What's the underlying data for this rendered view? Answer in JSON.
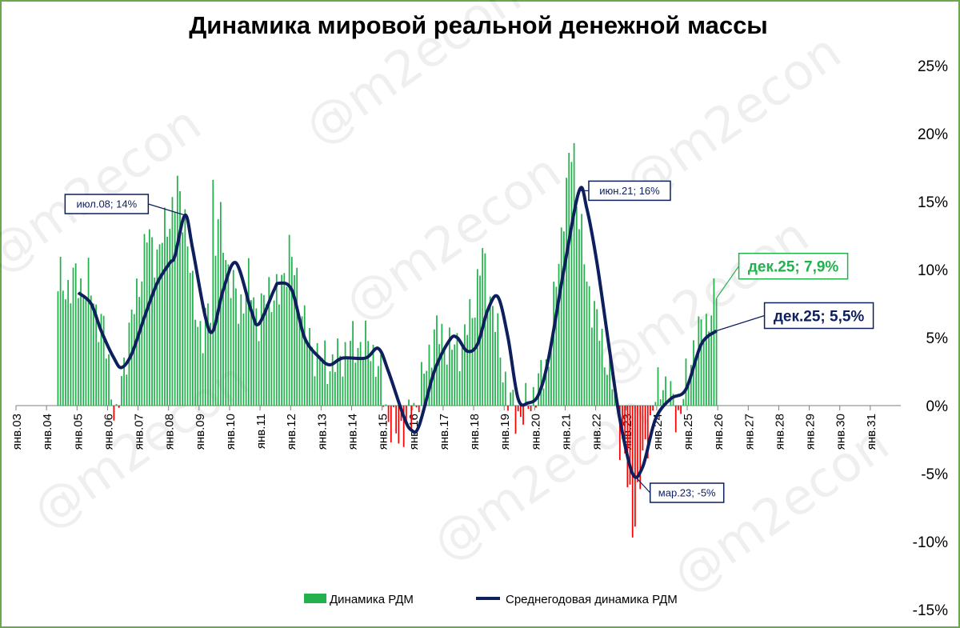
{
  "chart_data": {
    "type": "bar",
    "title": "Динамика мировой реальной денежной массы",
    "watermark": "@m2econ",
    "y_axis": {
      "min": -15,
      "max": 25,
      "step": 5,
      "ticks": [
        "-15%",
        "-10%",
        "-5%",
        "0%",
        "5%",
        "10%",
        "15%",
        "20%",
        "25%"
      ],
      "position": "right"
    },
    "x_axis": {
      "tick_labels": [
        "янв.03",
        "янв.04",
        "янв.05",
        "янв.06",
        "янв.07",
        "янв.08",
        "янв.09",
        "янв.10",
        "янв.11",
        "янв.12",
        "янв.13",
        "янв.14",
        "янв.15",
        "янв.16",
        "янв.17",
        "янв.18",
        "янв.19",
        "янв.20",
        "янв.21",
        "янв.22",
        "янв.23",
        "янв.24",
        "янв.25",
        "янв.26",
        "янв.27",
        "янв.28",
        "янв.29",
        "янв.30",
        "янв.31"
      ],
      "start_year": 2003,
      "end_year": 2032
    },
    "legend_position": "bottom",
    "colors": {
      "positive": "#22b14c",
      "negative": "#ff0000",
      "line": "#0d1f5c",
      "highlight": "#22b14c"
    },
    "series": [
      {
        "name": "Динамика РДМ",
        "type": "bar",
        "start": "2004-05",
        "anchors": [
          [
            "2004-05",
            9.2
          ],
          [
            "2004-08",
            8.5
          ],
          [
            "2004-11",
            9.3
          ],
          [
            "2005-02",
            8.8
          ],
          [
            "2005-05",
            9.0
          ],
          [
            "2005-08",
            7.0
          ],
          [
            "2005-11",
            5.5
          ],
          [
            "2006-02",
            1.5
          ],
          [
            "2006-04",
            -1.5
          ],
          [
            "2006-06",
            1.8
          ],
          [
            "2006-09",
            5.5
          ],
          [
            "2006-12",
            8.0
          ],
          [
            "2007-04",
            12.5
          ],
          [
            "2007-08",
            11.0
          ],
          [
            "2007-12",
            13.5
          ],
          [
            "2008-04",
            15.5
          ],
          [
            "2008-07",
            14.0
          ],
          [
            "2008-10",
            8.0
          ],
          [
            "2009-02",
            5.0
          ],
          [
            "2009-05",
            7.5
          ],
          [
            "2009-08",
            14.0
          ],
          [
            "2009-11",
            11.0
          ],
          [
            "2010-04",
            7.0
          ],
          [
            "2010-08",
            9.0
          ],
          [
            "2010-12",
            6.5
          ],
          [
            "2011-04",
            8.5
          ],
          [
            "2011-08",
            8.0
          ],
          [
            "2011-12",
            11.5
          ],
          [
            "2012-04",
            8.0
          ],
          [
            "2012-08",
            4.5
          ],
          [
            "2012-12",
            3.5
          ],
          [
            "2013-04",
            3.0
          ],
          [
            "2013-08",
            3.5
          ],
          [
            "2013-12",
            4.5
          ],
          [
            "2014-04",
            4.5
          ],
          [
            "2014-08",
            4.5
          ],
          [
            "2014-12",
            2.0
          ],
          [
            "2015-03",
            -1.0
          ],
          [
            "2015-06",
            -2.3
          ],
          [
            "2015-09",
            -1.5
          ],
          [
            "2015-12",
            -1.0
          ],
          [
            "2016-03",
            1.0
          ],
          [
            "2016-06",
            2.8
          ],
          [
            "2016-09",
            5.5
          ],
          [
            "2016-12",
            5.0
          ],
          [
            "2017-04",
            4.2
          ],
          [
            "2017-08",
            4.5
          ],
          [
            "2017-12",
            7.0
          ],
          [
            "2018-04",
            11.0
          ],
          [
            "2018-08",
            7.0
          ],
          [
            "2018-12",
            3.0
          ],
          [
            "2019-02",
            0.5
          ],
          [
            "2019-05",
            -0.5
          ],
          [
            "2019-08",
            -0.7
          ],
          [
            "2019-11",
            0.5
          ],
          [
            "2020-02",
            1.5
          ],
          [
            "2020-06",
            3.5
          ],
          [
            "2020-09",
            9.0
          ],
          [
            "2020-12",
            14.5
          ],
          [
            "2021-03",
            18.8
          ],
          [
            "2021-06",
            14.0
          ],
          [
            "2021-09",
            9.0
          ],
          [
            "2021-12",
            7.0
          ],
          [
            "2022-03",
            4.5
          ],
          [
            "2022-06",
            2.8
          ],
          [
            "2022-10",
            -2.0
          ],
          [
            "2022-12",
            -4.0
          ],
          [
            "2023-03",
            -9.0
          ],
          [
            "2023-06",
            -5.5
          ],
          [
            "2023-09",
            -2.0
          ],
          [
            "2023-12",
            0.5
          ],
          [
            "2024-03",
            2.0
          ],
          [
            "2024-06",
            0.5
          ],
          [
            "2024-09",
            -0.8
          ],
          [
            "2024-12",
            1.5
          ],
          [
            "2025-03",
            4.5
          ],
          [
            "2025-06",
            5.5
          ],
          [
            "2025-09",
            6.5
          ],
          [
            "2025-12",
            7.9
          ]
        ],
        "peaks": [
          [
            "2008-04",
            16.9
          ],
          [
            "2009-06",
            16.6
          ],
          [
            "2021-04",
            19.3
          ],
          [
            "2023-03",
            -9.7
          ]
        ]
      },
      {
        "name": "Среднегодовая динамика РДМ",
        "type": "line",
        "points": [
          [
            "2005-01",
            8.3
          ],
          [
            "2005-06",
            7.5
          ],
          [
            "2005-10",
            5.5
          ],
          [
            "2006-03",
            3.5
          ],
          [
            "2006-06",
            2.8
          ],
          [
            "2006-10",
            3.8
          ],
          [
            "2007-03",
            6.5
          ],
          [
            "2007-08",
            9.0
          ],
          [
            "2008-01",
            10.5
          ],
          [
            "2008-03",
            11.0
          ],
          [
            "2008-07",
            14.0
          ],
          [
            "2008-10",
            11.5
          ],
          [
            "2009-03",
            6.5
          ],
          [
            "2009-06",
            5.5
          ],
          [
            "2009-10",
            8.5
          ],
          [
            "2010-03",
            10.5
          ],
          [
            "2010-09",
            7.0
          ],
          [
            "2010-12",
            6.0
          ],
          [
            "2011-06",
            8.5
          ],
          [
            "2011-08",
            9.0
          ],
          [
            "2012-01",
            8.5
          ],
          [
            "2012-06",
            5.0
          ],
          [
            "2012-12",
            3.5
          ],
          [
            "2013-04",
            3.0
          ],
          [
            "2013-09",
            3.5
          ],
          [
            "2014-06",
            3.5
          ],
          [
            "2014-11",
            4.2
          ],
          [
            "2015-03",
            2.5
          ],
          [
            "2015-09",
            -0.8
          ],
          [
            "2015-12",
            -1.8
          ],
          [
            "2016-03",
            -1.5
          ],
          [
            "2016-09",
            2.5
          ],
          [
            "2017-03",
            4.8
          ],
          [
            "2017-06",
            5.0
          ],
          [
            "2017-10",
            4.0
          ],
          [
            "2018-02",
            4.5
          ],
          [
            "2018-06",
            7.0
          ],
          [
            "2018-10",
            8.0
          ],
          [
            "2019-02",
            5.0
          ],
          [
            "2019-06",
            0.5
          ],
          [
            "2019-10",
            0.2
          ],
          [
            "2020-02",
            0.8
          ],
          [
            "2020-06",
            3.5
          ],
          [
            "2020-12",
            10.0
          ],
          [
            "2021-06",
            15.8
          ],
          [
            "2021-09",
            14.5
          ],
          [
            "2022-01",
            10.5
          ],
          [
            "2022-06",
            4.0
          ],
          [
            "2022-10",
            -1.0
          ],
          [
            "2023-03",
            -5.0
          ],
          [
            "2023-07",
            -4.5
          ],
          [
            "2023-12",
            -1.0
          ],
          [
            "2024-06",
            0.5
          ],
          [
            "2024-12",
            1.2
          ],
          [
            "2025-06",
            4.5
          ],
          [
            "2025-12",
            5.5
          ]
        ]
      }
    ],
    "annotations": [
      {
        "text": "июл.08; 14%",
        "target": "line",
        "x": "2008-07",
        "y": 14.0
      },
      {
        "text": "июн.21; 16%",
        "target": "line",
        "x": "2021-06",
        "y": 15.8
      },
      {
        "text": "мар.23; -5%",
        "target": "line",
        "x": "2023-03",
        "y": -5.0
      },
      {
        "text": "дек.25; 5,5%",
        "target": "line",
        "x": "2025-12",
        "y": 5.5
      },
      {
        "text": "дек.25; 7,9%",
        "target": "bar",
        "x": "2025-12",
        "y": 7.9
      }
    ]
  }
}
